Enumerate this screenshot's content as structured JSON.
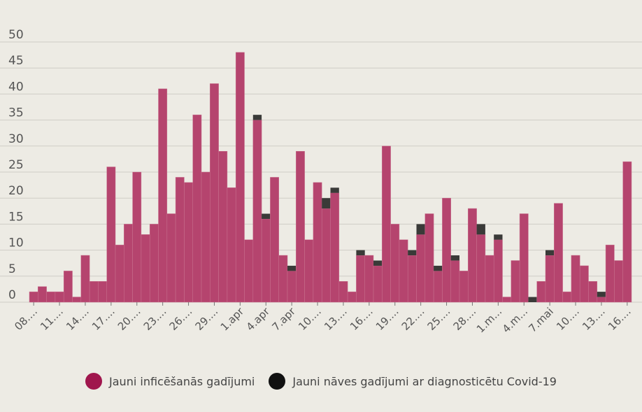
{
  "chart_data": {
    "type": "bar",
    "stacked": true,
    "ylim": [
      0,
      50
    ],
    "yticks": [
      "0",
      "5",
      "10",
      "15",
      "20",
      "25",
      "30",
      "35",
      "40",
      "45",
      "50"
    ],
    "grid": true,
    "legend_position": "bottom",
    "xtick_labels": [
      "08....",
      "11....",
      "14....",
      "17....",
      "20....",
      "23....",
      "26....",
      "29....",
      "1.apr",
      "4.apr",
      "7.apr",
      "10....",
      "13....",
      "16....",
      "19....",
      "22....",
      "25....",
      "28....",
      "1.m...",
      "4.m...",
      "7.mai",
      "10....",
      "13....",
      "16...."
    ],
    "series": [
      {
        "name": "Jauni inficēšanās gadījumi",
        "color": "#b5446e",
        "values": [
          2,
          3,
          2,
          2,
          6,
          1,
          9,
          4,
          4,
          26,
          11,
          15,
          25,
          13,
          15,
          41,
          17,
          24,
          23,
          36,
          25,
          42,
          29,
          22,
          48,
          12,
          35,
          16,
          24,
          9,
          6,
          29,
          12,
          23,
          18,
          21,
          4,
          2,
          9,
          9,
          7,
          30,
          15,
          12,
          9,
          13,
          17,
          6,
          20,
          8,
          6,
          18,
          13,
          9,
          12,
          1,
          8,
          17,
          0,
          4,
          9,
          19,
          2,
          9,
          7,
          4,
          1,
          11,
          8,
          27
        ]
      },
      {
        "name": "Jauni nāves gadījumi ar diagnosticētu Covid-19",
        "color": "#3a3a38",
        "values": [
          0,
          0,
          0,
          0,
          0,
          0,
          0,
          0,
          0,
          0,
          0,
          0,
          0,
          0,
          0,
          0,
          0,
          0,
          0,
          0,
          0,
          0,
          0,
          0,
          0,
          0,
          1,
          1,
          0,
          0,
          1,
          0,
          0,
          0,
          2,
          1,
          0,
          0,
          1,
          0,
          1,
          0,
          0,
          0,
          1,
          2,
          0,
          1,
          0,
          1,
          0,
          0,
          2,
          0,
          1,
          0,
          0,
          0,
          1,
          0,
          1,
          0,
          0,
          0,
          0,
          0,
          1,
          0,
          0,
          0
        ]
      }
    ]
  },
  "legend": {
    "items": [
      {
        "label": "Jauni inficēšanās gadījumi",
        "color": "#a0164d"
      },
      {
        "label": "Jauni nāves gadījumi ar diagnosticētu Covid-19",
        "color": "#111111"
      }
    ]
  }
}
